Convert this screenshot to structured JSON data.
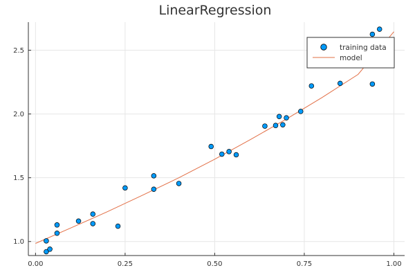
{
  "chart_data": {
    "type": "scatter",
    "title": "LinearRegression",
    "xlabel": "",
    "ylabel": "",
    "xlim": [
      -0.02,
      1.03
    ],
    "ylim": [
      0.89,
      2.72
    ],
    "x_ticks": [
      0.0,
      0.25,
      0.5,
      0.75,
      1.0
    ],
    "x_tick_labels": [
      "0.00",
      "0.25",
      "0.50",
      "0.75",
      "1.00"
    ],
    "y_ticks": [
      1.0,
      1.5,
      2.0,
      2.5
    ],
    "y_tick_labels": [
      "1.0",
      "1.5",
      "2.0",
      "2.5"
    ],
    "grid": true,
    "legend_position": "top-right",
    "series": [
      {
        "name": "training data",
        "kind": "scatter",
        "color": "#009AF9",
        "points": [
          [
            0.03,
            0.92
          ],
          [
            0.03,
            1.005
          ],
          [
            0.04,
            0.94
          ],
          [
            0.06,
            1.13
          ],
          [
            0.06,
            1.065
          ],
          [
            0.12,
            1.16
          ],
          [
            0.16,
            1.14
          ],
          [
            0.16,
            1.215
          ],
          [
            0.23,
            1.12
          ],
          [
            0.25,
            1.42
          ],
          [
            0.33,
            1.515
          ],
          [
            0.33,
            1.41
          ],
          [
            0.4,
            1.455
          ],
          [
            0.49,
            1.745
          ],
          [
            0.52,
            1.685
          ],
          [
            0.54,
            1.705
          ],
          [
            0.56,
            1.68
          ],
          [
            0.64,
            1.905
          ],
          [
            0.67,
            1.91
          ],
          [
            0.68,
            1.98
          ],
          [
            0.69,
            1.915
          ],
          [
            0.7,
            1.97
          ],
          [
            0.74,
            2.02
          ],
          [
            0.77,
            2.22
          ],
          [
            0.85,
            2.24
          ],
          [
            0.94,
            2.235
          ],
          [
            0.94,
            2.625
          ],
          [
            0.96,
            2.665
          ]
        ]
      },
      {
        "name": "model",
        "kind": "line",
        "color": "#E26F46",
        "points": [
          [
            0.0,
            0.985
          ],
          [
            0.1,
            1.108
          ],
          [
            0.2,
            1.233
          ],
          [
            0.3,
            1.365
          ],
          [
            0.4,
            1.5
          ],
          [
            0.5,
            1.645
          ],
          [
            0.6,
            1.8
          ],
          [
            0.7,
            1.96
          ],
          [
            0.8,
            2.13
          ],
          [
            0.9,
            2.31
          ],
          [
            1.0,
            2.645
          ]
        ]
      }
    ]
  }
}
